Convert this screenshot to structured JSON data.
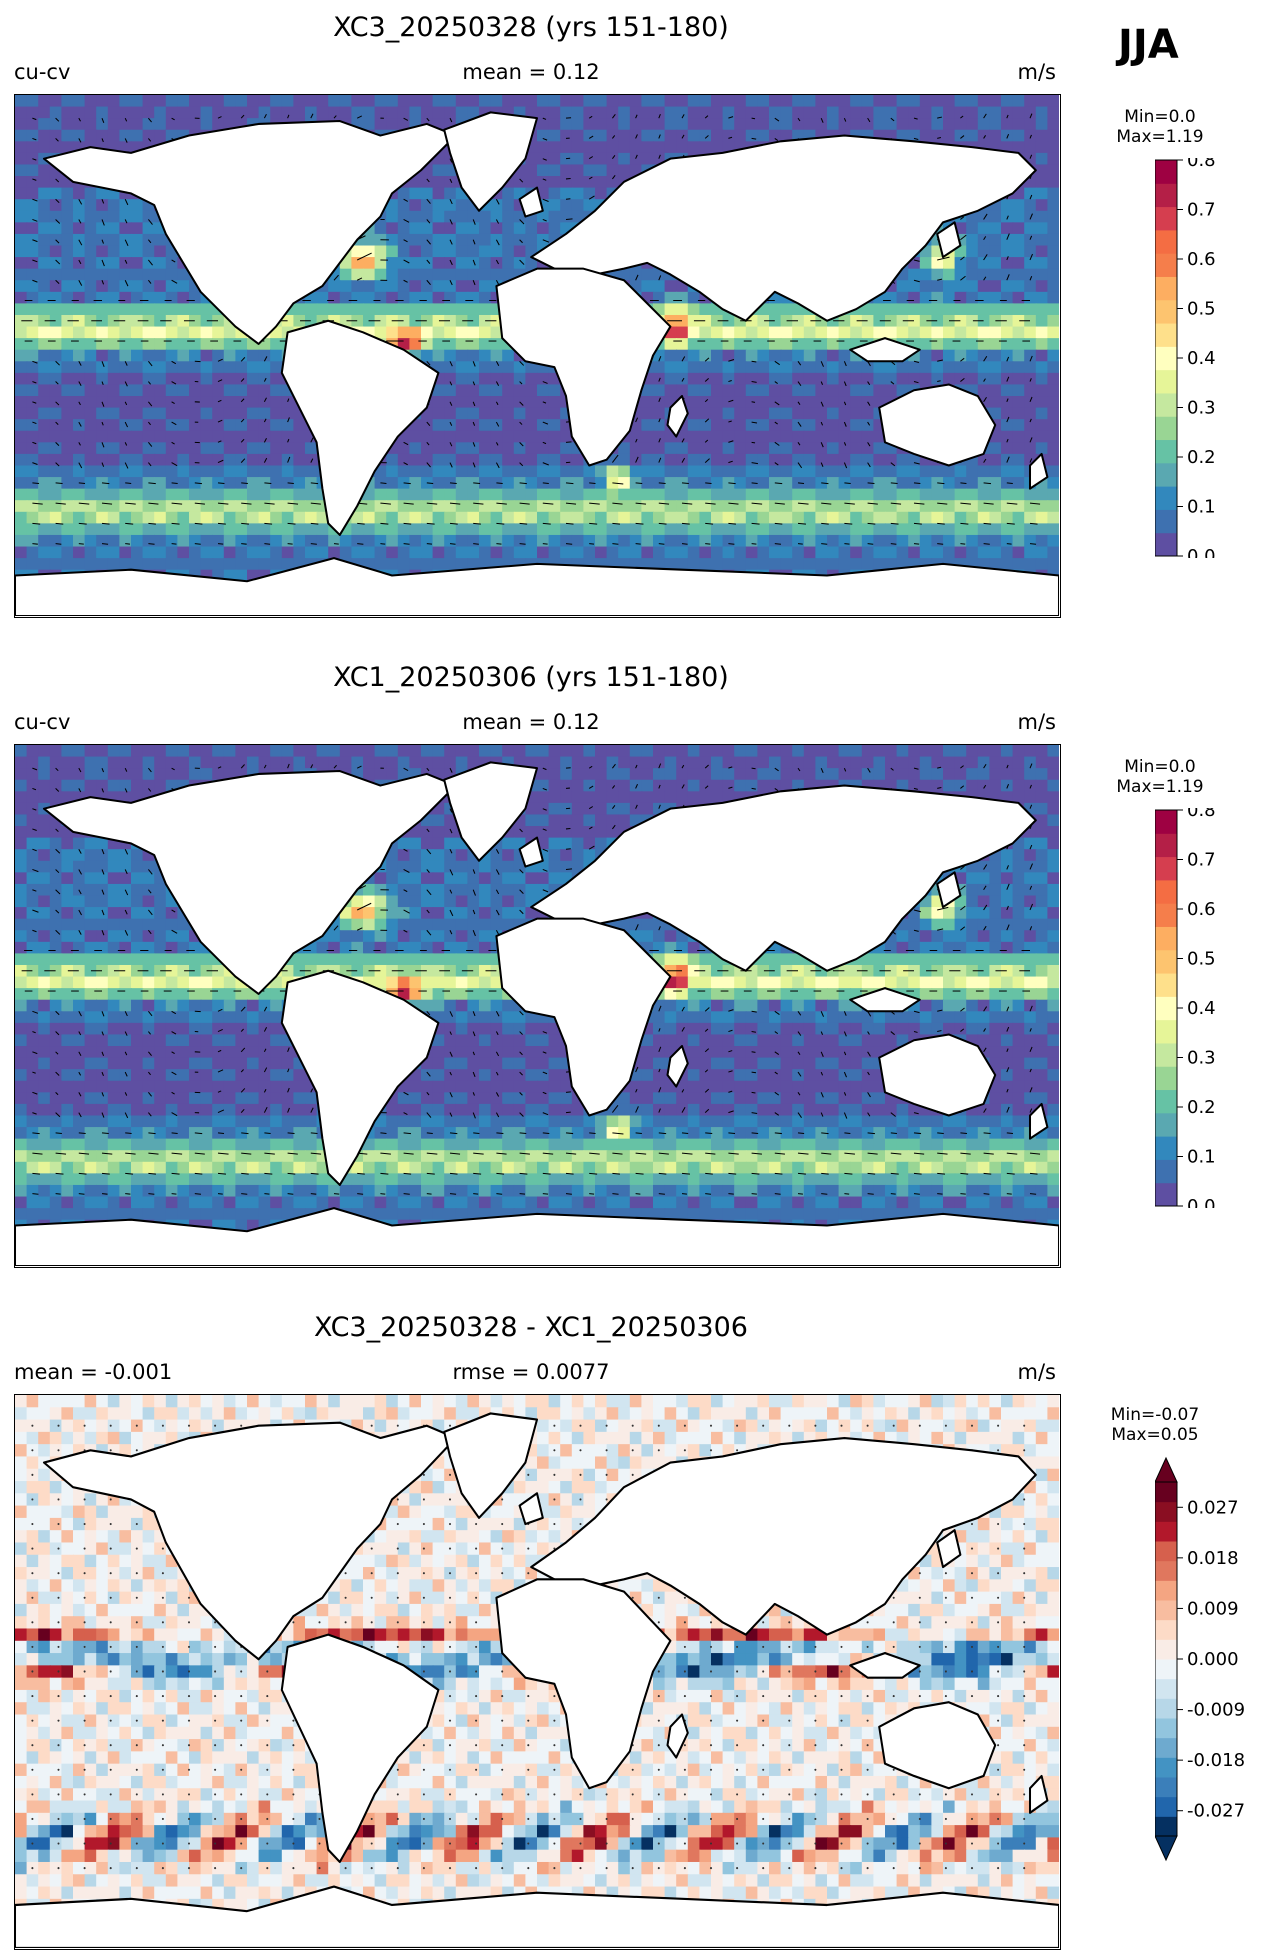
{
  "season": "JJA",
  "units_label": "m/s",
  "panels": [
    {
      "title": "XC3_20250328 (yrs 151-180)",
      "left": "cu-cv",
      "center": "mean = 0.12",
      "right": "m/s",
      "min_label": "Min=0.0",
      "max_label": "Max=1.19"
    },
    {
      "title": "XC1_20250306 (yrs 151-180)",
      "left": "cu-cv",
      "center": "mean = 0.12",
      "right": "m/s",
      "min_label": "Min=0.0",
      "max_label": "Max=1.19"
    },
    {
      "title": "XC3_20250328 - XC1_20250306",
      "left": "mean = -0.001",
      "center": "rmse = 0.0077",
      "right": "m/s",
      "min_label": "Min=-0.07",
      "max_label": "Max=0.05"
    }
  ],
  "colorbars": {
    "speed": {
      "ticks": [
        "0.0",
        "0.1",
        "0.2",
        "0.3",
        "0.4",
        "0.5",
        "0.6",
        "0.7",
        "0.8"
      ],
      "colors": [
        "#5e4fa2",
        "#3e71b0",
        "#3288bd",
        "#5aa8b1",
        "#66c2a5",
        "#99d594",
        "#c5e89f",
        "#e6f598",
        "#ffffbf",
        "#fee08b",
        "#fdc46f",
        "#fdae61",
        "#f57e4b",
        "#f46d43",
        "#d53e4f",
        "#b41f47",
        "#9e0142"
      ]
    },
    "diff": {
      "ticks": [
        "-0.027",
        "-0.018",
        "-0.009",
        "0.000",
        "0.009",
        "0.018",
        "0.027"
      ],
      "colors": [
        "#053061",
        "#2166ac",
        "#3b7fba",
        "#4393c3",
        "#6eaacf",
        "#92c5de",
        "#b7d7e8",
        "#d1e5f0",
        "#eef4f8",
        "#f9ece6",
        "#fddbc7",
        "#f8bda0",
        "#f4a582",
        "#e0775e",
        "#d6604d",
        "#b2182b",
        "#8a0e22",
        "#67001f"
      ]
    }
  }
}
